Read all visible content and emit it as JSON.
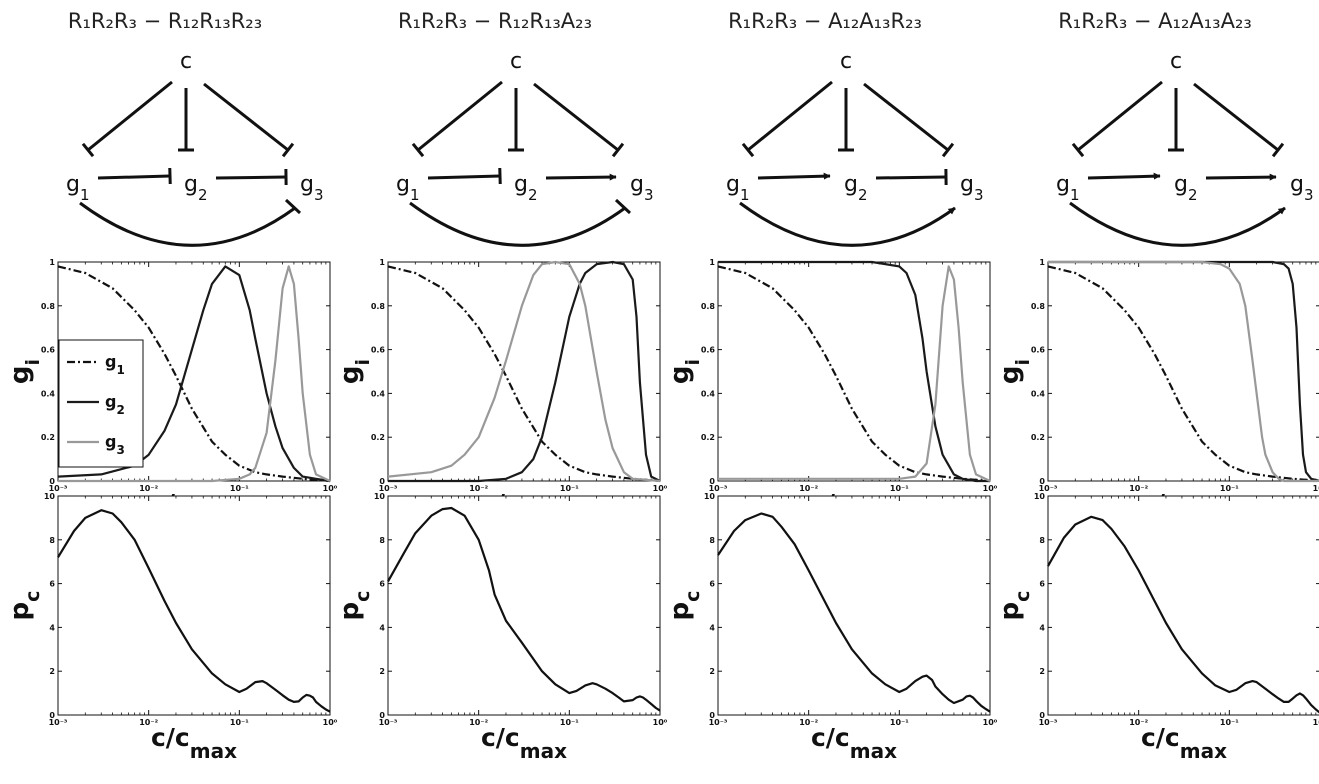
{
  "panels": [
    {
      "title": "R₁R₂R₃ − R₁₂R₁₃R₂₃",
      "edges": {
        "c1": "R",
        "c2": "R",
        "c3": "R",
        "e12": "R",
        "e23": "R",
        "e13": "R"
      }
    },
    {
      "title": "R₁R₂R₃ − R₁₂R₁₃A₂₃",
      "edges": {
        "c1": "R",
        "c2": "R",
        "c3": "R",
        "e12": "R",
        "e23": "A",
        "e13": "R"
      }
    },
    {
      "title": "R₁R₂R₃ − A₁₂A₁₃R₂₃",
      "edges": {
        "c1": "R",
        "c2": "R",
        "c3": "R",
        "e12": "A",
        "e23": "R",
        "e13": "A"
      }
    },
    {
      "title": "R₁R₂R₃ − A₁₂A₁₃A₂₃",
      "edges": {
        "c1": "R",
        "c2": "R",
        "c3": "R",
        "e12": "A",
        "e23": "A",
        "e13": "A"
      }
    }
  ],
  "nodes": {
    "c": "c",
    "g1": "g",
    "g1_sub": "1",
    "g2": "g",
    "g2_sub": "2",
    "g3": "g",
    "g3_sub": "3"
  },
  "colors": {
    "g1": "#111111",
    "g2": "#1a1a1a",
    "g3": "#999999",
    "pc": "#111111"
  },
  "chart_data": [
    {
      "type": "line",
      "xscale": "log",
      "xlim": [
        0.001,
        1
      ],
      "ylim": [
        0,
        1
      ],
      "xticks": [
        "10⁻³",
        "10⁻²",
        "10⁻¹",
        "10⁰"
      ],
      "yticks": [
        "0",
        "0.2",
        "0.4",
        "0.6",
        "0.8",
        "1"
      ],
      "xlabel": "c/c",
      "xlabel_sub": "max",
      "ylabel": "g",
      "ylabel_sub": "i",
      "legend": {
        "placement": "middle-left",
        "entries": [
          {
            "label": "g",
            "sub": "1"
          },
          {
            "label": "g",
            "sub": "2"
          },
          {
            "label": "g",
            "sub": "3"
          }
        ]
      },
      "series": [
        {
          "name": "g1",
          "style": "dashdot",
          "x": [
            0.001,
            0.002,
            0.004,
            0.007,
            0.01,
            0.015,
            0.02,
            0.03,
            0.05,
            0.07,
            0.1,
            0.15,
            0.2,
            0.3,
            0.5,
            0.7,
            1
          ],
          "y": [
            0.98,
            0.95,
            0.88,
            0.78,
            0.7,
            0.58,
            0.48,
            0.33,
            0.18,
            0.12,
            0.07,
            0.04,
            0.03,
            0.02,
            0.01,
            0.005,
            0.0
          ]
        },
        {
          "name": "g2",
          "style": "solid",
          "x": [
            0.001,
            0.003,
            0.007,
            0.01,
            0.015,
            0.02,
            0.03,
            0.04,
            0.05,
            0.07,
            0.1,
            0.13,
            0.15,
            0.2,
            0.25,
            0.3,
            0.4,
            0.5,
            0.7,
            1
          ],
          "y": [
            0.02,
            0.03,
            0.07,
            0.12,
            0.23,
            0.35,
            0.6,
            0.78,
            0.9,
            0.98,
            0.94,
            0.78,
            0.65,
            0.4,
            0.25,
            0.15,
            0.06,
            0.02,
            0.01,
            0.0
          ]
        },
        {
          "name": "g3",
          "style": "solid",
          "x": [
            0.001,
            0.05,
            0.1,
            0.13,
            0.15,
            0.2,
            0.25,
            0.3,
            0.35,
            0.4,
            0.45,
            0.5,
            0.6,
            0.7,
            1
          ],
          "y": [
            0.0,
            0.0,
            0.01,
            0.03,
            0.06,
            0.22,
            0.55,
            0.88,
            0.98,
            0.9,
            0.65,
            0.4,
            0.12,
            0.03,
            0.0
          ]
        }
      ]
    },
    {
      "type": "line",
      "xscale": "log",
      "xlim": [
        0.001,
        1
      ],
      "ylim": [
        0,
        1
      ],
      "xticks": [
        "10⁻³",
        "10⁻²",
        "10⁻¹",
        "10⁰"
      ],
      "yticks": [
        "0",
        "0.2",
        "0.4",
        "0.6",
        "0.8",
        "1"
      ],
      "xlabel": "c/c",
      "xlabel_sub": "max",
      "ylabel": "g",
      "ylabel_sub": "i",
      "series": [
        {
          "name": "g1",
          "style": "dashdot",
          "x": [
            0.001,
            0.002,
            0.004,
            0.007,
            0.01,
            0.015,
            0.02,
            0.03,
            0.05,
            0.07,
            0.1,
            0.15,
            0.2,
            0.3,
            0.5,
            0.7,
            1
          ],
          "y": [
            0.98,
            0.95,
            0.88,
            0.78,
            0.7,
            0.58,
            0.48,
            0.33,
            0.18,
            0.12,
            0.07,
            0.04,
            0.03,
            0.02,
            0.01,
            0.005,
            0.0
          ]
        },
        {
          "name": "g2",
          "style": "solid",
          "x": [
            0.001,
            0.01,
            0.02,
            0.03,
            0.04,
            0.05,
            0.07,
            0.1,
            0.13,
            0.15,
            0.2,
            0.3,
            0.4,
            0.5,
            0.55,
            0.6,
            0.7,
            0.8,
            1
          ],
          "y": [
            0.0,
            0.0,
            0.01,
            0.04,
            0.1,
            0.2,
            0.45,
            0.75,
            0.9,
            0.95,
            0.99,
            1.0,
            0.99,
            0.92,
            0.75,
            0.45,
            0.12,
            0.02,
            0.0
          ]
        },
        {
          "name": "g3",
          "style": "solid",
          "x": [
            0.001,
            0.003,
            0.005,
            0.007,
            0.01,
            0.015,
            0.02,
            0.03,
            0.04,
            0.05,
            0.07,
            0.1,
            0.13,
            0.15,
            0.2,
            0.25,
            0.3,
            0.4,
            0.5,
            1
          ],
          "y": [
            0.02,
            0.04,
            0.07,
            0.12,
            0.2,
            0.38,
            0.55,
            0.8,
            0.94,
            0.99,
            1.0,
            0.99,
            0.9,
            0.8,
            0.5,
            0.28,
            0.15,
            0.04,
            0.01,
            0.0
          ]
        }
      ]
    },
    {
      "type": "line",
      "xscale": "log",
      "xlim": [
        0.001,
        1
      ],
      "ylim": [
        0,
        1
      ],
      "xticks": [
        "10⁻³",
        "10⁻²",
        "10⁻¹",
        "10⁰"
      ],
      "yticks": [
        "0",
        "0.2",
        "0.4",
        "0.6",
        "0.8",
        "1"
      ],
      "xlabel": "c/c",
      "xlabel_sub": "max",
      "ylabel": "g",
      "ylabel_sub": "i",
      "series": [
        {
          "name": "g1",
          "style": "dashdot",
          "x": [
            0.001,
            0.002,
            0.004,
            0.007,
            0.01,
            0.015,
            0.02,
            0.03,
            0.05,
            0.07,
            0.1,
            0.15,
            0.2,
            0.3,
            0.5,
            0.7,
            1
          ],
          "y": [
            0.98,
            0.95,
            0.88,
            0.78,
            0.7,
            0.58,
            0.48,
            0.33,
            0.18,
            0.12,
            0.07,
            0.04,
            0.03,
            0.02,
            0.01,
            0.005,
            0.0
          ]
        },
        {
          "name": "g2",
          "style": "solid",
          "x": [
            0.001,
            0.05,
            0.1,
            0.12,
            0.15,
            0.18,
            0.2,
            0.25,
            0.3,
            0.4,
            0.5,
            0.7,
            1
          ],
          "y": [
            1.0,
            1.0,
            0.98,
            0.95,
            0.85,
            0.65,
            0.5,
            0.25,
            0.12,
            0.03,
            0.01,
            0.0,
            0.0
          ]
        },
        {
          "name": "g3",
          "style": "solid",
          "x": [
            0.001,
            0.1,
            0.15,
            0.2,
            0.25,
            0.3,
            0.35,
            0.4,
            0.45,
            0.5,
            0.6,
            0.7,
            1
          ],
          "y": [
            0.01,
            0.01,
            0.02,
            0.08,
            0.35,
            0.8,
            0.98,
            0.92,
            0.7,
            0.45,
            0.12,
            0.03,
            0.0
          ]
        }
      ]
    },
    {
      "type": "line",
      "xscale": "log",
      "xlim": [
        0.001,
        1
      ],
      "ylim": [
        0,
        1
      ],
      "xticks": [
        "10⁻³",
        "10⁻²",
        "10⁻¹",
        "10⁰"
      ],
      "yticks": [
        "0",
        "0.2",
        "0.4",
        "0.6",
        "0.8",
        "1"
      ],
      "xlabel": "c/c",
      "xlabel_sub": "max",
      "ylabel": "g",
      "ylabel_sub": "i",
      "series": [
        {
          "name": "g1",
          "style": "dashdot",
          "x": [
            0.001,
            0.002,
            0.004,
            0.007,
            0.01,
            0.015,
            0.02,
            0.03,
            0.05,
            0.07,
            0.1,
            0.15,
            0.2,
            0.3,
            0.5,
            0.7,
            1
          ],
          "y": [
            0.98,
            0.95,
            0.88,
            0.78,
            0.7,
            0.58,
            0.48,
            0.33,
            0.18,
            0.12,
            0.07,
            0.04,
            0.03,
            0.02,
            0.01,
            0.005,
            0.0
          ]
        },
        {
          "name": "g2",
          "style": "solid",
          "x": [
            0.001,
            0.2,
            0.3,
            0.4,
            0.45,
            0.5,
            0.55,
            0.6,
            0.65,
            0.7,
            0.8,
            1
          ],
          "y": [
            1.0,
            1.0,
            1.0,
            0.99,
            0.97,
            0.9,
            0.7,
            0.35,
            0.12,
            0.04,
            0.01,
            0.0
          ]
        },
        {
          "name": "g3",
          "style": "solid",
          "x": [
            0.001,
            0.05,
            0.08,
            0.1,
            0.13,
            0.15,
            0.18,
            0.2,
            0.23,
            0.25,
            0.3,
            0.35,
            0.4,
            0.5,
            1
          ],
          "y": [
            1.0,
            1.0,
            0.99,
            0.97,
            0.9,
            0.8,
            0.55,
            0.4,
            0.2,
            0.12,
            0.04,
            0.01,
            0.0,
            0.0,
            0.0
          ]
        }
      ]
    },
    {
      "type": "line",
      "xscale": "log",
      "xlim": [
        0.001,
        1
      ],
      "ylim": [
        0,
        10
      ],
      "xticks": [
        "10⁻³",
        "10⁻²",
        "10⁻¹",
        "10⁰"
      ],
      "yticks": [
        "0",
        "2",
        "4",
        "6",
        "8",
        "10"
      ],
      "xlabel": "c/c",
      "xlabel_sub": "max",
      "ylabel": "p",
      "ylabel_sub": "c",
      "series": [
        {
          "name": "pc",
          "style": "solid",
          "x": [
            0.001,
            0.0015,
            0.002,
            0.003,
            0.004,
            0.005,
            0.007,
            0.01,
            0.015,
            0.02,
            0.03,
            0.05,
            0.07,
            0.1,
            0.12,
            0.15,
            0.18,
            0.2,
            0.25,
            0.3,
            0.35,
            0.4,
            0.45,
            0.5,
            0.55,
            0.6,
            0.65,
            0.7,
            0.8,
            0.9,
            1
          ],
          "y": [
            7.2,
            8.4,
            9.0,
            9.35,
            9.2,
            8.8,
            8.0,
            6.7,
            5.2,
            4.2,
            3.0,
            1.9,
            1.4,
            1.05,
            1.2,
            1.5,
            1.55,
            1.45,
            1.15,
            0.9,
            0.7,
            0.6,
            0.62,
            0.8,
            0.92,
            0.88,
            0.8,
            0.6,
            0.4,
            0.25,
            0.15
          ]
        }
      ]
    },
    {
      "type": "line",
      "xscale": "log",
      "xlim": [
        0.001,
        1
      ],
      "ylim": [
        0,
        10
      ],
      "xticks": [
        "10⁻³",
        "10⁻²",
        "10⁻¹",
        "10⁰"
      ],
      "yticks": [
        "0",
        "2",
        "4",
        "6",
        "8",
        "10"
      ],
      "xlabel": "c/c",
      "xlabel_sub": "max",
      "ylabel": "p",
      "ylabel_sub": "c",
      "series": [
        {
          "name": "pc",
          "style": "solid",
          "x": [
            0.001,
            0.0015,
            0.002,
            0.003,
            0.004,
            0.005,
            0.007,
            0.01,
            0.013,
            0.015,
            0.02,
            0.03,
            0.05,
            0.07,
            0.1,
            0.12,
            0.15,
            0.18,
            0.2,
            0.25,
            0.3,
            0.35,
            0.4,
            0.5,
            0.55,
            0.6,
            0.65,
            0.7,
            0.8,
            0.9,
            1
          ],
          "y": [
            6.1,
            7.4,
            8.3,
            9.1,
            9.4,
            9.45,
            9.1,
            8.0,
            6.6,
            5.5,
            4.3,
            3.3,
            2.0,
            1.4,
            1.0,
            1.1,
            1.35,
            1.45,
            1.4,
            1.2,
            1.0,
            0.8,
            0.62,
            0.68,
            0.8,
            0.85,
            0.8,
            0.7,
            0.5,
            0.32,
            0.2
          ]
        }
      ]
    },
    {
      "type": "line",
      "xscale": "log",
      "xlim": [
        0.001,
        1
      ],
      "ylim": [
        0,
        10
      ],
      "xticks": [
        "10⁻³",
        "10⁻²",
        "10⁻¹",
        "10⁰"
      ],
      "yticks": [
        "0",
        "2",
        "4",
        "6",
        "8",
        "10"
      ],
      "xlabel": "c/c",
      "xlabel_sub": "max",
      "ylabel": "p",
      "ylabel_sub": "c",
      "series": [
        {
          "name": "pc",
          "style": "solid",
          "x": [
            0.001,
            0.0015,
            0.002,
            0.003,
            0.004,
            0.005,
            0.007,
            0.01,
            0.015,
            0.02,
            0.03,
            0.05,
            0.07,
            0.1,
            0.12,
            0.15,
            0.18,
            0.2,
            0.23,
            0.25,
            0.3,
            0.35,
            0.4,
            0.5,
            0.55,
            0.6,
            0.65,
            0.7,
            0.8,
            0.9,
            1
          ],
          "y": [
            7.3,
            8.4,
            8.9,
            9.2,
            9.05,
            8.6,
            7.8,
            6.6,
            5.2,
            4.2,
            3.0,
            1.9,
            1.4,
            1.05,
            1.2,
            1.55,
            1.75,
            1.8,
            1.6,
            1.3,
            0.95,
            0.7,
            0.55,
            0.7,
            0.85,
            0.88,
            0.8,
            0.65,
            0.42,
            0.27,
            0.15
          ]
        }
      ]
    },
    {
      "type": "line",
      "xscale": "log",
      "xlim": [
        0.001,
        1
      ],
      "ylim": [
        0,
        10
      ],
      "xticks": [
        "10⁻³",
        "10⁻²",
        "10⁻¹",
        "10⁰"
      ],
      "yticks": [
        "0",
        "2",
        "4",
        "6",
        "8",
        "10"
      ],
      "xlabel": "c/c",
      "xlabel_sub": "max",
      "ylabel": "p",
      "ylabel_sub": "c",
      "series": [
        {
          "name": "pc",
          "style": "solid",
          "x": [
            0.001,
            0.0015,
            0.002,
            0.003,
            0.004,
            0.005,
            0.007,
            0.01,
            0.015,
            0.02,
            0.03,
            0.05,
            0.07,
            0.1,
            0.12,
            0.15,
            0.18,
            0.2,
            0.25,
            0.3,
            0.35,
            0.4,
            0.45,
            0.5,
            0.55,
            0.6,
            0.65,
            0.7,
            0.8,
            0.9,
            1
          ],
          "y": [
            6.8,
            8.1,
            8.7,
            9.05,
            8.9,
            8.5,
            7.7,
            6.6,
            5.2,
            4.2,
            3.0,
            1.9,
            1.35,
            1.05,
            1.15,
            1.45,
            1.55,
            1.5,
            1.2,
            0.95,
            0.75,
            0.6,
            0.6,
            0.75,
            0.9,
            0.98,
            0.9,
            0.75,
            0.45,
            0.25,
            0.1
          ]
        }
      ]
    }
  ]
}
